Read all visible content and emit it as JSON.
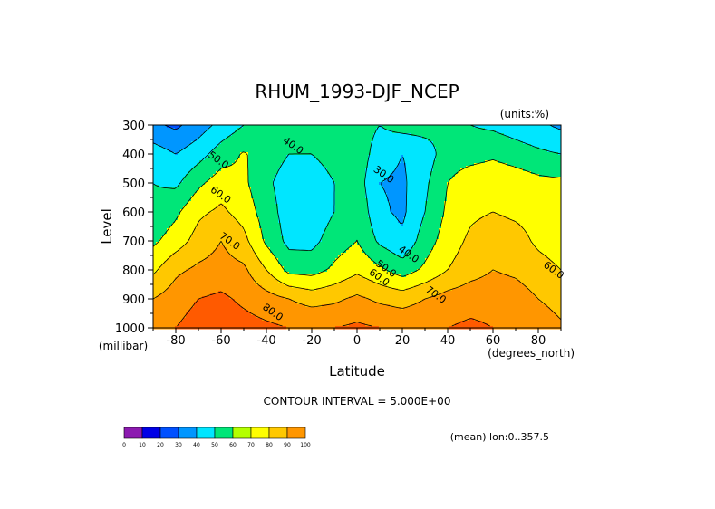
{
  "chart_data": {
    "type": "contour",
    "title": "RHUM_1993-DJF_NCEP",
    "units_label": "(units:%)",
    "xlabel": "Latitude",
    "ylabel": "Level",
    "x_unit_label": "(degrees_north)",
    "y_unit_label": "(millibar)",
    "xlim": [
      -90,
      90
    ],
    "ylim": [
      1000,
      300
    ],
    "x_ticks": [
      -80,
      -60,
      -40,
      -20,
      0,
      20,
      40,
      60,
      80
    ],
    "y_ticks": [
      300,
      400,
      500,
      600,
      700,
      800,
      900,
      1000
    ],
    "contour_interval_text": "CONTOUR INTERVAL = 5.000E+00",
    "footer_text": "(mean) lon:0..357.5",
    "contour_labels": [
      {
        "text": "40.0",
        "lat": -29,
        "lev": 380
      },
      {
        "text": "50.0",
        "lat": -62,
        "lev": 430
      },
      {
        "text": "30.0",
        "lat": 11,
        "lev": 480
      },
      {
        "text": "60.0",
        "lat": -61,
        "lev": 550
      },
      {
        "text": "70.0",
        "lat": -57,
        "lev": 710
      },
      {
        "text": "40.0",
        "lat": 22,
        "lev": 755
      },
      {
        "text": "50.0",
        "lat": 12,
        "lev": 805
      },
      {
        "text": "60.0",
        "lat": 9,
        "lev": 835
      },
      {
        "text": "60.0",
        "lat": 86,
        "lev": 810
      },
      {
        "text": "70.0",
        "lat": 34,
        "lev": 895
      },
      {
        "text": "80.0",
        "lat": -38,
        "lev": 955
      }
    ],
    "levels": [
      0,
      10,
      20,
      30,
      40,
      50,
      60,
      70,
      80,
      90,
      100
    ],
    "colorbar_labels": [
      "0",
      "10",
      "20",
      "30",
      "40",
      "50",
      "60",
      "70",
      "80",
      "90",
      "100"
    ],
    "colors": [
      "#8c1ab0",
      "#0000e6",
      "#0050ff",
      "#0096ff",
      "#00e6ff",
      "#00e678",
      "#b4ff00",
      "#ffff00",
      "#ffc800",
      "#ff9600",
      "#ff5a00",
      "#ff0000"
    ],
    "fill_colors": [
      "#0000e6",
      "#0050ff",
      "#0096ff",
      "#00e6ff",
      "#00e678",
      "#ffff00",
      "#ffc800",
      "#ff9600",
      "#ff5a00",
      "#ff0000"
    ],
    "grid_lat": [
      -90,
      -80,
      -70,
      -60,
      -50,
      -40,
      -30,
      -20,
      -10,
      0,
      10,
      20,
      30,
      40,
      50,
      60,
      70,
      80,
      90
    ],
    "grid_lev": [
      300,
      400,
      500,
      600,
      700,
      800,
      900,
      1000
    ],
    "values": [
      [
        22,
        18,
        25,
        33,
        40,
        45,
        45,
        44,
        45,
        45,
        40,
        44,
        44,
        41,
        40,
        38,
        35,
        32,
        28
      ],
      [
        35,
        30,
        36,
        45,
        51,
        45,
        40,
        40,
        44,
        46,
        35,
        30,
        35,
        45,
        46,
        48,
        45,
        42,
        40
      ],
      [
        40,
        38,
        48,
        55,
        52,
        42,
        35,
        34,
        40,
        45,
        30,
        28,
        38,
        50,
        56,
        58,
        56,
        53,
        52
      ],
      [
        42,
        48,
        58,
        62,
        56,
        45,
        35,
        33,
        40,
        48,
        32,
        28,
        40,
        52,
        58,
        60,
        58,
        56,
        55
      ],
      [
        48,
        55,
        64,
        70,
        63,
        48,
        37,
        37,
        45,
        50,
        38,
        32,
        45,
        55,
        62,
        66,
        64,
        58,
        55
      ],
      [
        58,
        68,
        72,
        74,
        72,
        60,
        47,
        46,
        52,
        58,
        52,
        45,
        52,
        60,
        66,
        70,
        68,
        64,
        60
      ],
      [
        70,
        75,
        80,
        82,
        78,
        74,
        70,
        66,
        68,
        72,
        68,
        66,
        70,
        74,
        76,
        76,
        75,
        70,
        65
      ],
      [
        78,
        80,
        85,
        86,
        84,
        82,
        80,
        80,
        80,
        82,
        80,
        78,
        78,
        80,
        82,
        80,
        80,
        78,
        72
      ]
    ]
  }
}
